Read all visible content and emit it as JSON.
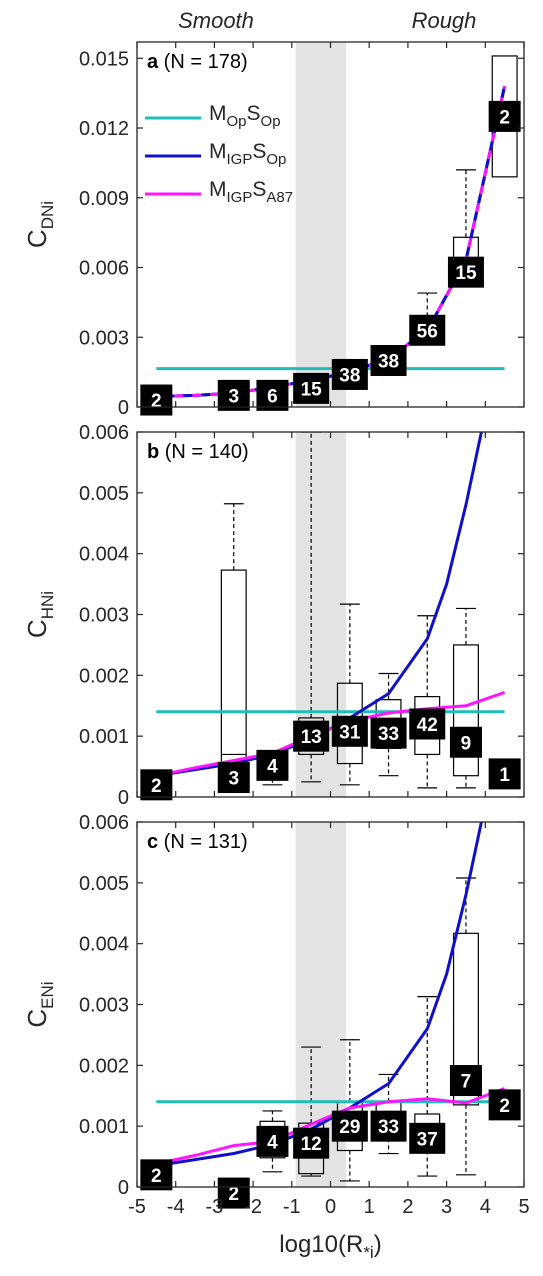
{
  "labels": {
    "smooth": "Smooth",
    "rough": "Rough"
  },
  "colors": {
    "MOpSOp": "#1fbdb8",
    "MIGPSOp": "#1010cc",
    "MIGPSA87": "#ff14ff",
    "shade": "#e3e3e3",
    "box_label_bg": "#000000",
    "axis": "#262626"
  },
  "chart_data": [
    {
      "type": "box",
      "panel": "a",
      "title": "(N = 178)",
      "ylabel": {
        "main": "C",
        "sub": "DNi"
      },
      "xlim": [
        -5,
        5
      ],
      "ylim": [
        0,
        0.0157
      ],
      "yticks": [
        0,
        0.003,
        0.006,
        0.009,
        0.012,
        0.015
      ],
      "ytick_labels": [
        "0",
        "0.003",
        "0.006",
        "0.009",
        "0.012",
        "0.015"
      ],
      "xticks": [
        -5,
        -4,
        -3,
        -2,
        -1,
        0,
        1,
        2,
        3,
        4,
        5
      ],
      "xtick_labels": [],
      "shaded_x": [
        -0.9,
        0.4
      ],
      "legend": {
        "position": "top-left",
        "entries": [
          {
            "main": "M",
            "sub1": "Op",
            "mid": "S",
            "sub2": "Op",
            "color_key": "MOpSOp"
          },
          {
            "main": "M",
            "sub1": "IGP",
            "mid": "S",
            "sub2": "Op",
            "color_key": "MIGPSOp"
          },
          {
            "main": "M",
            "sub1": "IGP",
            "mid": "S",
            "sub2": "A87",
            "color_key": "MIGPSA87"
          }
        ]
      },
      "lines": [
        {
          "key": "MOpSOp",
          "dashed": false,
          "x": [
            -4.5,
            4.5
          ],
          "y": [
            0.00165,
            0.00165
          ]
        },
        {
          "key": "MIGPSOp",
          "dashed": false,
          "x": [
            -4.5,
            -3.5,
            -2.5,
            -1.5,
            -0.5,
            0.5,
            1.5,
            2.5,
            3.5,
            4.5
          ],
          "y": [
            0.00045,
            0.0005,
            0.0006,
            0.00085,
            0.00115,
            0.0015,
            0.0021,
            0.0033,
            0.0063,
            0.0138
          ]
        },
        {
          "key": "MIGPSA87",
          "dashed": true,
          "x": [
            -4.5,
            -3.5,
            -2.5,
            -1.5,
            -0.5,
            0.5,
            1.5,
            2.5,
            3.5,
            4.5
          ],
          "y": [
            0.00045,
            0.0005,
            0.0006,
            0.00085,
            0.00115,
            0.0015,
            0.0021,
            0.0033,
            0.0063,
            0.0138
          ]
        }
      ],
      "boxes": [
        {
          "x": -4.5,
          "n": "2",
          "q1": 0.00025,
          "median": 0.0003,
          "q3": 0.00035,
          "whisker_low": 0.00025,
          "whisker_high": 0.00035,
          "label_y": 0.0003
        },
        {
          "x": -2.5,
          "n": "3",
          "q1": 0.0005,
          "median": 0.00055,
          "q3": 0.0006,
          "whisker_low": 0.0005,
          "whisker_high": 0.0006,
          "label_y": 0.0005
        },
        {
          "x": -1.5,
          "n": "6",
          "q1": 0.0005,
          "median": 0.0006,
          "q3": 0.0008,
          "whisker_low": 0.0005,
          "whisker_high": 0.0008,
          "label_y": 0.0005
        },
        {
          "x": -0.5,
          "n": "15",
          "q1": 0.0007,
          "median": 0.0009,
          "q3": 0.0011,
          "whisker_low": 0.0006,
          "whisker_high": 0.0013,
          "label_y": 0.0008
        },
        {
          "x": 0.5,
          "n": "38",
          "q1": 0.0012,
          "median": 0.0014,
          "q3": 0.0016,
          "whisker_low": 0.001,
          "whisker_high": 0.0018,
          "label_y": 0.0014
        },
        {
          "x": 1.5,
          "n": "38",
          "q1": 0.0017,
          "median": 0.0019,
          "q3": 0.0022,
          "whisker_low": 0.0015,
          "whisker_high": 0.0024,
          "label_y": 0.002
        },
        {
          "x": 2.5,
          "n": "56",
          "q1": 0.0032,
          "median": 0.0034,
          "q3": 0.0039,
          "whisker_low": 0.003,
          "whisker_high": 0.0049,
          "label_y": 0.0033
        },
        {
          "x": 3.5,
          "n": "15",
          "q1": 0.0058,
          "median": 0.006,
          "q3": 0.0073,
          "whisker_low": 0.0052,
          "whisker_high": 0.0102,
          "label_y": 0.0058
        },
        {
          "x": 4.5,
          "n": "2",
          "q1": 0.0099,
          "median": 0.0125,
          "q3": 0.0151,
          "whisker_low": 0.0099,
          "whisker_high": 0.0151,
          "label_y": 0.0125
        }
      ]
    },
    {
      "type": "box",
      "panel": "b",
      "title": "(N = 140)",
      "ylabel": {
        "main": "C",
        "sub": "HNi"
      },
      "xlim": [
        -5,
        5
      ],
      "ylim": [
        0,
        0.006
      ],
      "yticks": [
        0,
        0.001,
        0.002,
        0.003,
        0.004,
        0.005,
        0.006
      ],
      "ytick_labels": [
        "0",
        "0.001",
        "0.002",
        "0.003",
        "0.004",
        "0.005",
        "0.006"
      ],
      "xticks": [
        -5,
        -4,
        -3,
        -2,
        -1,
        0,
        1,
        2,
        3,
        4,
        5
      ],
      "xtick_labels": [],
      "shaded_x": [
        -0.9,
        0.4
      ],
      "lines": [
        {
          "key": "MOpSOp",
          "dashed": false,
          "x": [
            -4.5,
            4.5
          ],
          "y": [
            0.0014,
            0.0014
          ]
        },
        {
          "key": "MIGPSOp",
          "dashed": false,
          "x": [
            -4.5,
            -3.5,
            -2.5,
            -1.5,
            -0.5,
            0.5,
            1.5,
            2.5,
            3,
            3.5,
            3.9
          ],
          "y": [
            0.00035,
            0.00045,
            0.00055,
            0.0007,
            0.00095,
            0.0013,
            0.0017,
            0.0026,
            0.0035,
            0.0048,
            0.006
          ]
        },
        {
          "key": "MIGPSA87",
          "dashed": false,
          "x": [
            -4.5,
            -3.5,
            -2.5,
            -1.5,
            -0.5,
            0.5,
            1.5,
            2.5,
            3.5,
            4.5
          ],
          "y": [
            0.00035,
            0.00048,
            0.0006,
            0.00072,
            0.001,
            0.00125,
            0.00138,
            0.00145,
            0.0015,
            0.00172
          ]
        }
      ],
      "boxes": [
        {
          "x": -4.5,
          "n": "2",
          "q1": 0.0001,
          "median": 0.00015,
          "q3": 0.0002,
          "whisker_low": 0.0001,
          "whisker_high": 0.0002,
          "label_y": 0.0002
        },
        {
          "x": -2.5,
          "n": "3",
          "q1": 0.0001,
          "median": 0.0007,
          "q3": 0.00373,
          "whisker_low": 8e-05,
          "whisker_high": 0.00482,
          "label_y": 0.00032
        },
        {
          "x": -1.5,
          "n": "4",
          "q1": 0.0003,
          "median": 0.0005,
          "q3": 0.0007,
          "whisker_low": 0.0002,
          "whisker_high": 0.0007,
          "label_y": 0.00052
        },
        {
          "x": -0.5,
          "n": "13",
          "q1": 0.0007,
          "median": 0.001,
          "q3": 0.0013,
          "whisker_low": 0.00025,
          "whisker_high": 0.006,
          "label_y": 0.001
        },
        {
          "x": 0.5,
          "n": "31",
          "q1": 0.00055,
          "median": 0.00105,
          "q3": 0.00187,
          "whisker_low": 0.0002,
          "whisker_high": 0.00317,
          "label_y": 0.00108
        },
        {
          "x": 1.5,
          "n": "33",
          "q1": 0.0008,
          "median": 0.0011,
          "q3": 0.0016,
          "whisker_low": 0.00035,
          "whisker_high": 0.00203,
          "label_y": 0.00105
        },
        {
          "x": 2.5,
          "n": "42",
          "q1": 0.0007,
          "median": 0.00125,
          "q3": 0.00165,
          "whisker_low": 0.00015,
          "whisker_high": 0.00298,
          "label_y": 0.0012
        },
        {
          "x": 3.5,
          "n": "9",
          "q1": 0.00035,
          "median": 0.001,
          "q3": 0.0025,
          "whisker_low": 0.00015,
          "whisker_high": 0.0031,
          "label_y": 0.0009
        },
        {
          "x": 4.5,
          "n": "1",
          "q1": 0.00038,
          "median": 0.00038,
          "q3": 0.00038,
          "whisker_low": 0.00038,
          "whisker_high": 0.00038,
          "label_y": 0.00038
        }
      ]
    },
    {
      "type": "box",
      "panel": "c",
      "title": "(N = 131)",
      "ylabel": {
        "main": "C",
        "sub": "ENi"
      },
      "xlabel": {
        "main": "log10(R",
        "sub": "*i",
        "close": ")"
      },
      "xlim": [
        -5,
        5
      ],
      "ylim": [
        0,
        0.006
      ],
      "yticks": [
        0,
        0.001,
        0.002,
        0.003,
        0.004,
        0.005,
        0.006
      ],
      "ytick_labels": [
        "0",
        "0.001",
        "0.002",
        "0.003",
        "0.004",
        "0.005",
        "0.006"
      ],
      "xticks": [
        -5,
        -4,
        -3,
        -2,
        -1,
        0,
        1,
        2,
        3,
        4,
        5
      ],
      "xtick_labels": [
        "-5",
        "-4",
        "-3",
        "-2",
        "-1",
        "0",
        "1",
        "2",
        "3",
        "4",
        "5"
      ],
      "shaded_x": [
        -0.9,
        0.4
      ],
      "lines": [
        {
          "key": "MOpSOp",
          "dashed": false,
          "x": [
            -4.5,
            4.5
          ],
          "y": [
            0.0014,
            0.0014
          ]
        },
        {
          "key": "MIGPSOp",
          "dashed": false,
          "x": [
            -4.5,
            -3.5,
            -2.5,
            -1.5,
            -0.5,
            0.5,
            1.5,
            2.5,
            3,
            3.5,
            3.9
          ],
          "y": [
            0.00035,
            0.00045,
            0.00055,
            0.0007,
            0.00095,
            0.0013,
            0.0017,
            0.0026,
            0.0035,
            0.0048,
            0.006
          ]
        },
        {
          "key": "MIGPSA87",
          "dashed": false,
          "x": [
            -4.5,
            -3.5,
            -2.5,
            -1.5,
            -0.5,
            0.5,
            1.5,
            2.5,
            3.5,
            4.5
          ],
          "y": [
            0.00038,
            0.00052,
            0.00068,
            0.00075,
            0.00103,
            0.0013,
            0.0014,
            0.00145,
            0.00138,
            0.00162
          ]
        }
      ],
      "boxes": [
        {
          "x": -4.5,
          "n": "2",
          "q1": 0.0002,
          "median": 0.0002,
          "q3": 0.0002,
          "whisker_low": 0.0002,
          "whisker_high": 0.0002,
          "label_y": 0.0002
        },
        {
          "x": -2.5,
          "n": "2",
          "q1": -0.0001,
          "median": -0.0001,
          "q3": -0.0001,
          "whisker_low": -0.0001,
          "whisker_high": -0.0001,
          "label_y": -0.0001
        },
        {
          "x": -1.5,
          "n": "4",
          "q1": 0.00048,
          "median": 0.0007,
          "q3": 0.00108,
          "whisker_low": 0.00025,
          "whisker_high": 0.00125,
          "label_y": 0.00075
        },
        {
          "x": -0.5,
          "n": "12",
          "q1": 0.00022,
          "median": 0.00065,
          "q3": 0.00105,
          "whisker_low": 0.00018,
          "whisker_high": 0.0023,
          "label_y": 0.00072
        },
        {
          "x": 0.5,
          "n": "29",
          "q1": 0.0006,
          "median": 0.001,
          "q3": 0.0014,
          "whisker_low": 0.0001,
          "whisker_high": 0.00242,
          "label_y": 0.001
        },
        {
          "x": 1.5,
          "n": "33",
          "q1": 0.0008,
          "median": 0.0011,
          "q3": 0.0014,
          "whisker_low": 0.00055,
          "whisker_high": 0.00185,
          "label_y": 0.001
        },
        {
          "x": 2.5,
          "n": "37",
          "q1": 0.0006,
          "median": 0.0009,
          "q3": 0.0012,
          "whisker_low": 0.00018,
          "whisker_high": 0.00313,
          "label_y": 0.0008
        },
        {
          "x": 3.5,
          "n": "7",
          "q1": 0.00135,
          "median": 0.00175,
          "q3": 0.00417,
          "whisker_low": 0.0002,
          "whisker_high": 0.00508,
          "label_y": 0.00175
        },
        {
          "x": 4.5,
          "n": "2",
          "q1": 0.00135,
          "median": 0.00135,
          "q3": 0.00135,
          "whisker_low": 0.00135,
          "whisker_high": 0.00135,
          "label_y": 0.00135
        }
      ]
    }
  ]
}
